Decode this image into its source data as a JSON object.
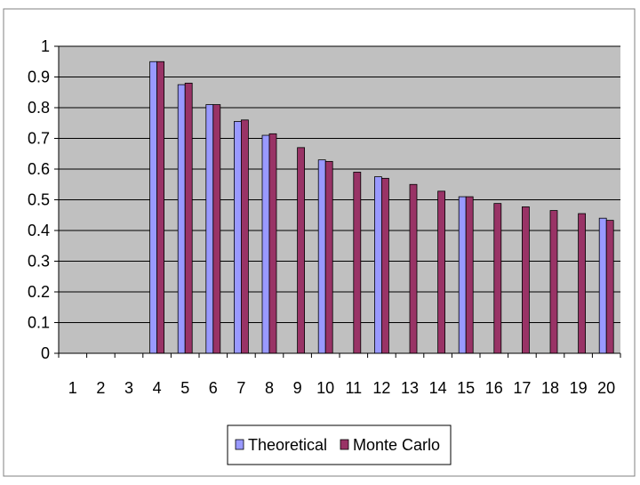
{
  "colors": {
    "plot_background": "#c0c0c0",
    "grid": "#000000",
    "theoretical": "#9999ff",
    "monte_carlo": "#993366",
    "frame": "#808080"
  },
  "chart_data": {
    "type": "bar",
    "title": "",
    "xlabel": "",
    "ylabel": "",
    "ylim": [
      0,
      1
    ],
    "y_ticks": [
      "0",
      "0.1",
      "0.2",
      "0.3",
      "0.4",
      "0.5",
      "0.6",
      "0.7",
      "0.8",
      "0.9",
      "1"
    ],
    "categories": [
      "1",
      "2",
      "3",
      "4",
      "5",
      "6",
      "7",
      "8",
      "9",
      "10",
      "11",
      "12",
      "13",
      "14",
      "15",
      "16",
      "17",
      "18",
      "19",
      "20"
    ],
    "grid": true,
    "legend_position": "bottom",
    "series": [
      {
        "name": "Theoretical",
        "values": [
          null,
          null,
          null,
          0.95,
          0.875,
          0.81,
          0.755,
          0.71,
          null,
          0.63,
          null,
          0.575,
          null,
          null,
          0.51,
          null,
          null,
          null,
          null,
          0.44
        ]
      },
      {
        "name": "Monte Carlo",
        "values": [
          null,
          null,
          null,
          0.95,
          0.88,
          0.81,
          0.76,
          0.715,
          0.67,
          0.625,
          0.59,
          0.57,
          0.55,
          0.528,
          0.51,
          0.488,
          0.477,
          0.465,
          0.455,
          0.433
        ]
      }
    ]
  }
}
